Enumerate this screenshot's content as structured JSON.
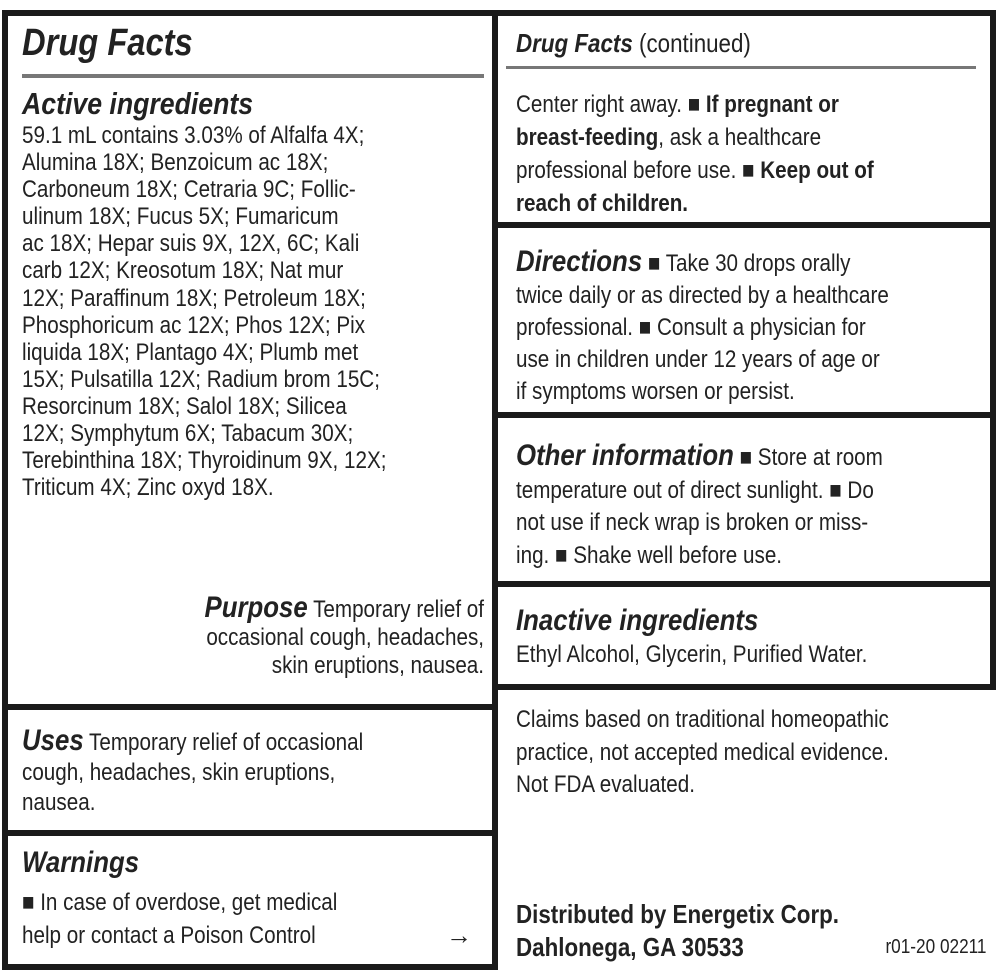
{
  "left": {
    "title": "Drug Facts",
    "active": {
      "heading": "Active ingredients",
      "lines": [
        [
          {
            "t": "59.1 mL contains 3.03% of Alfalfa 4X;"
          }
        ],
        [
          {
            "t": "Alumina 18X; Benzoicum ac 18X;"
          }
        ],
        [
          {
            "t": "Carboneum 18X; Cetraria 9C; Follic-"
          }
        ],
        [
          {
            "t": "ulinum 18X; Fucus 5X; Fumaricum"
          }
        ],
        [
          {
            "t": "ac 18X; Hepar suis 9X, 12X, 6C; Kali"
          }
        ],
        [
          {
            "t": "carb 12X; Kreosotum 18X; Nat mur"
          }
        ],
        [
          {
            "t": "12X; Paraffinum 18X; Petroleum 18X;"
          }
        ],
        [
          {
            "t": "Phosphoricum ac 12X; Phos 12X; Pix"
          }
        ],
        [
          {
            "t": "liquida 18X; Plantago 4X; Plumb met"
          }
        ],
        [
          {
            "t": "15X; Pulsatilla 12X; Radium brom 15C;"
          }
        ],
        [
          {
            "t": "Resorcinum 18X; Salol 18X; Silicea"
          }
        ],
        [
          {
            "t": "12X; Symphytum 6X; Tabacum 30X;"
          }
        ],
        [
          {
            "t": "Terebinthina 18X; Thyroidinum 9X, 12X;"
          }
        ],
        [
          {
            "t": "Triticum 4X; Zinc oxyd 18X."
          }
        ]
      ]
    },
    "purpose": {
      "lines": [
        [
          {
            "t": "Purpose",
            "h": 1
          },
          {
            "t": " Temporary relief of"
          }
        ],
        [
          {
            "t": "occasional cough, headaches,"
          }
        ],
        [
          {
            "t": "skin eruptions, nausea."
          }
        ]
      ]
    },
    "uses": {
      "lines": [
        [
          {
            "t": "Uses",
            "h": 1
          },
          {
            "t": " Temporary relief of occasional"
          }
        ],
        [
          {
            "t": "cough, headaches, skin eruptions,"
          }
        ],
        [
          {
            "t": "nausea."
          }
        ]
      ]
    },
    "warnings": {
      "heading": "Warnings",
      "lines": [
        [
          {
            "t": "■ In case of overdose, get medical"
          }
        ],
        [
          {
            "t": "help or contact a Poison Control"
          }
        ]
      ],
      "arrow": "→"
    }
  },
  "right": {
    "title": "Drug Facts",
    "title_suffix": " (continued)",
    "cont": {
      "lines": [
        [
          {
            "t": "Center right away. ■ "
          },
          {
            "t": "If pregnant or",
            "b": 1
          }
        ],
        [
          {
            "t": "breast-feeding",
            "b": 1
          },
          {
            "t": ", ask a healthcare"
          }
        ],
        [
          {
            "t": "professional before use. ■ "
          },
          {
            "t": "Keep out of",
            "b": 1
          }
        ],
        [
          {
            "t": "reach of children.",
            "b": 1
          }
        ]
      ]
    },
    "directions": {
      "lines": [
        [
          {
            "t": "Directions",
            "h": 1
          },
          {
            "t": " ■ Take 30 drops orally"
          }
        ],
        [
          {
            "t": "twice daily or as directed by a healthcare"
          }
        ],
        [
          {
            "t": "professional. ■ Consult a physician for"
          }
        ],
        [
          {
            "t": "use in children under 12 years of age or"
          }
        ],
        [
          {
            "t": "if symptoms worsen or persist."
          }
        ]
      ]
    },
    "other": {
      "lines": [
        [
          {
            "t": "Other information",
            "h": 1
          },
          {
            "t": " ■ Store at room"
          }
        ],
        [
          {
            "t": "temperature out of direct sunlight. ■ Do"
          }
        ],
        [
          {
            "t": "not use if neck wrap is broken or miss-"
          }
        ],
        [
          {
            "t": "ing. ■ Shake well before use."
          }
        ]
      ]
    },
    "inactive": {
      "heading": "Inactive ingredients",
      "lines": [
        [
          {
            "t": "Ethyl Alcohol, Glycerin, Purified Water."
          }
        ]
      ]
    },
    "claims": {
      "lines": [
        [
          {
            "t": "Claims based on traditional homeopathic"
          }
        ],
        [
          {
            "t": "practice, not accepted medical evidence."
          }
        ],
        [
          {
            "t": "Not FDA evaluated."
          }
        ]
      ]
    },
    "distributor": {
      "lines": [
        [
          {
            "t": "Distributed by Energetix Corp.",
            "b": 1
          }
        ],
        [
          {
            "t": "Dahlonega, GA 30533",
            "b": 1
          }
        ]
      ]
    },
    "code": "r01-20 02211"
  }
}
